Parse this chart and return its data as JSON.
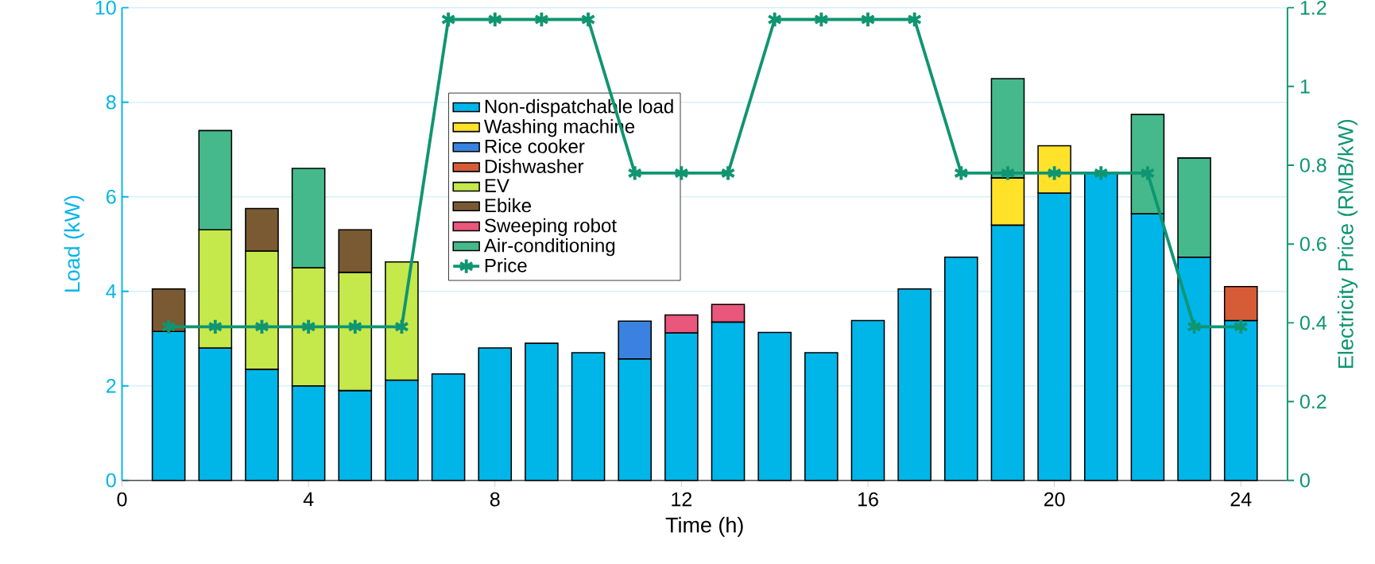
{
  "chart_data": {
    "type": "bar",
    "stacked": true,
    "xlabel": "Time (h)",
    "ylabel": "Load (kW)",
    "y2label": "Electricity Price (RMB/kW)",
    "x": [
      1,
      2,
      3,
      4,
      5,
      6,
      7,
      8,
      9,
      10,
      11,
      12,
      13,
      14,
      15,
      16,
      17,
      18,
      19,
      20,
      21,
      22,
      23,
      24
    ],
    "xlim": [
      0,
      25
    ],
    "xticks": [
      0,
      4,
      8,
      12,
      16,
      20,
      24
    ],
    "ylim": [
      0,
      10
    ],
    "yticks": [
      0,
      2,
      4,
      6,
      8,
      10
    ],
    "y2lim": [
      0,
      1.2
    ],
    "y2ticks": [
      0,
      0.2,
      0.4,
      0.6,
      0.8,
      1,
      1.2
    ],
    "grid": "y",
    "legend": "top",
    "series": [
      {
        "name": "Non-dispatchable load",
        "color": "#00b5e8",
        "values": [
          3.15,
          2.8,
          2.35,
          2.0,
          1.9,
          2.12,
          2.25,
          2.8,
          2.9,
          2.7,
          2.57,
          3.12,
          3.35,
          3.13,
          2.7,
          3.38,
          4.05,
          4.72,
          5.4,
          6.08,
          6.5,
          5.64,
          4.72,
          3.38
        ]
      },
      {
        "name": "Washing machine",
        "color": "#ffe229",
        "values": [
          null,
          null,
          null,
          null,
          null,
          null,
          null,
          null,
          null,
          null,
          null,
          null,
          null,
          null,
          null,
          null,
          null,
          null,
          1.0,
          1.0,
          null,
          null,
          null,
          null
        ]
      },
      {
        "name": "Rice cooker",
        "color": "#3b82e0",
        "values": [
          null,
          null,
          null,
          null,
          null,
          null,
          null,
          null,
          null,
          null,
          0.8,
          null,
          null,
          null,
          null,
          null,
          null,
          null,
          null,
          null,
          null,
          null,
          null,
          null
        ]
      },
      {
        "name": "Dishwasher",
        "color": "#d65c37",
        "values": [
          null,
          null,
          null,
          null,
          null,
          null,
          null,
          null,
          null,
          null,
          null,
          null,
          null,
          null,
          null,
          null,
          null,
          null,
          null,
          null,
          null,
          null,
          null,
          0.72
        ]
      },
      {
        "name": "EV",
        "color": "#c5e84b",
        "values": [
          null,
          2.5,
          2.5,
          2.5,
          2.5,
          2.5,
          null,
          null,
          null,
          null,
          null,
          null,
          null,
          null,
          null,
          null,
          null,
          null,
          null,
          null,
          null,
          null,
          null,
          null
        ]
      },
      {
        "name": "Ebike",
        "color": "#7a5a32",
        "values": [
          0.9,
          null,
          0.9,
          null,
          0.9,
          null,
          null,
          null,
          null,
          null,
          null,
          null,
          null,
          null,
          null,
          null,
          null,
          null,
          null,
          null,
          null,
          null,
          null,
          null
        ]
      },
      {
        "name": "Sweeping robot",
        "color": "#e9577c",
        "values": [
          null,
          null,
          null,
          null,
          null,
          null,
          null,
          null,
          null,
          null,
          null,
          0.38,
          0.37,
          null,
          null,
          null,
          null,
          null,
          null,
          null,
          null,
          null,
          null,
          null
        ]
      },
      {
        "name": "Air-conditioning",
        "color": "#45b98b",
        "values": [
          null,
          2.1,
          null,
          2.1,
          null,
          null,
          null,
          null,
          null,
          null,
          null,
          null,
          null,
          null,
          null,
          null,
          null,
          null,
          2.1,
          null,
          null,
          2.1,
          2.1,
          null
        ]
      },
      {
        "name": "Price",
        "type": "line",
        "axis": "y2",
        "color": "#0f9571",
        "marker": "cross",
        "line_style": "solid",
        "values": [
          0.39,
          0.39,
          0.39,
          0.39,
          0.39,
          0.39,
          1.17,
          1.17,
          1.17,
          1.17,
          0.78,
          0.78,
          0.78,
          1.17,
          1.17,
          1.17,
          1.17,
          0.78,
          0.78,
          0.78,
          0.78,
          0.78,
          0.39,
          0.39
        ]
      }
    ]
  }
}
